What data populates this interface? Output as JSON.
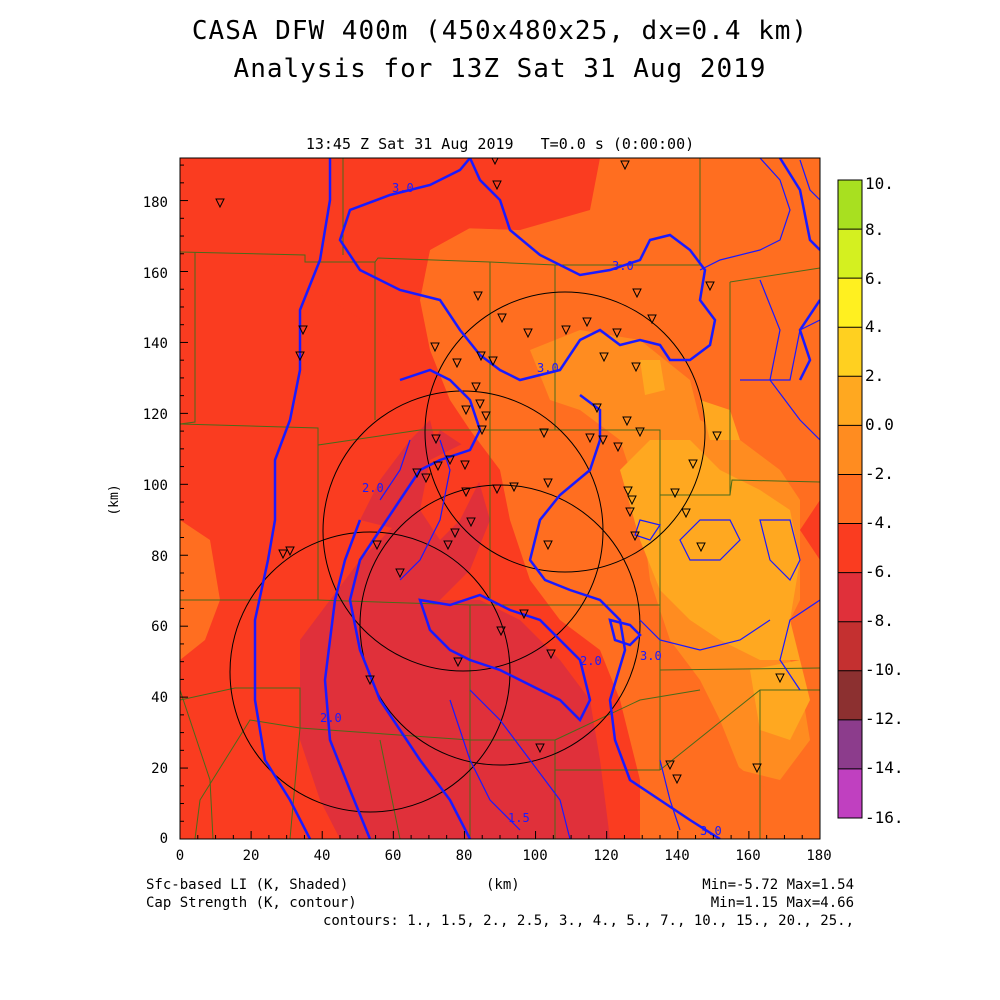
{
  "titles": {
    "line1": "CASA DFW 400m (450x480x25, dx=0.4 km)",
    "line2": "Analysis for 13Z Sat 31 Aug 2019",
    "valid": "13:45 Z Sat 31 Aug 2019   T=0.0 s (0:00:00)"
  },
  "axes": {
    "x_label": "(km)",
    "y_label": "(km)",
    "x_ticks": [
      "0",
      "20",
      "40",
      "60",
      "80",
      "100",
      "120",
      "140",
      "160",
      "180"
    ],
    "y_ticks": [
      "0",
      "20",
      "40",
      "60",
      "80",
      "100",
      "120",
      "140",
      "160",
      "180"
    ]
  },
  "colorbar": {
    "labels": [
      "10.",
      "8.",
      "6.",
      "4.",
      "2.",
      "0.0",
      "-2.",
      "-4.",
      "-6.",
      "-8.",
      "-10.",
      "-12.",
      "-14.",
      "-16."
    ],
    "colors": [
      "#a8e020",
      "#d4f020",
      "#fff020",
      "#ffd020",
      "#ffa820",
      "#ff8c20",
      "#ff6e20",
      "#fa3c20",
      "#e0303a",
      "#c43030",
      "#8c3030",
      "#8c3c8c",
      "#c040c0",
      "#e040e8"
    ]
  },
  "legend": {
    "shaded": "Sfc-based LI (K, Shaded)",
    "contour": "Cap Strength (K, contour)",
    "x_unit": "(km)",
    "shaded_range": "Min=-5.72 Max=1.54",
    "contour_range": "Min=1.15 Max=4.66",
    "contour_levels": "contours: 1., 1.5, 2., 2.5, 3., 4., 5., 7., 10., 15., 20., 25.,"
  },
  "contour_labels": [
    "3.0",
    "3.0",
    "3.0",
    "2.0",
    "2.0",
    "2.0",
    "3.0",
    "1.5",
    "3.0"
  ],
  "map": {
    "domain_km": {
      "x": [
        0,
        180
      ],
      "y": [
        0,
        192
      ]
    },
    "radar_station_count": 4,
    "shading_colors": {
      "below_-4": "#e0303a",
      "-4_to_-2": "#fa3c20",
      "-2_to_0": "#ff6e20",
      "0_to_2": "#ff8c20",
      "2_to_4": "#ffa820"
    },
    "contour_color": "#1a1aff",
    "county_line_color": "#4a6a1a"
  }
}
